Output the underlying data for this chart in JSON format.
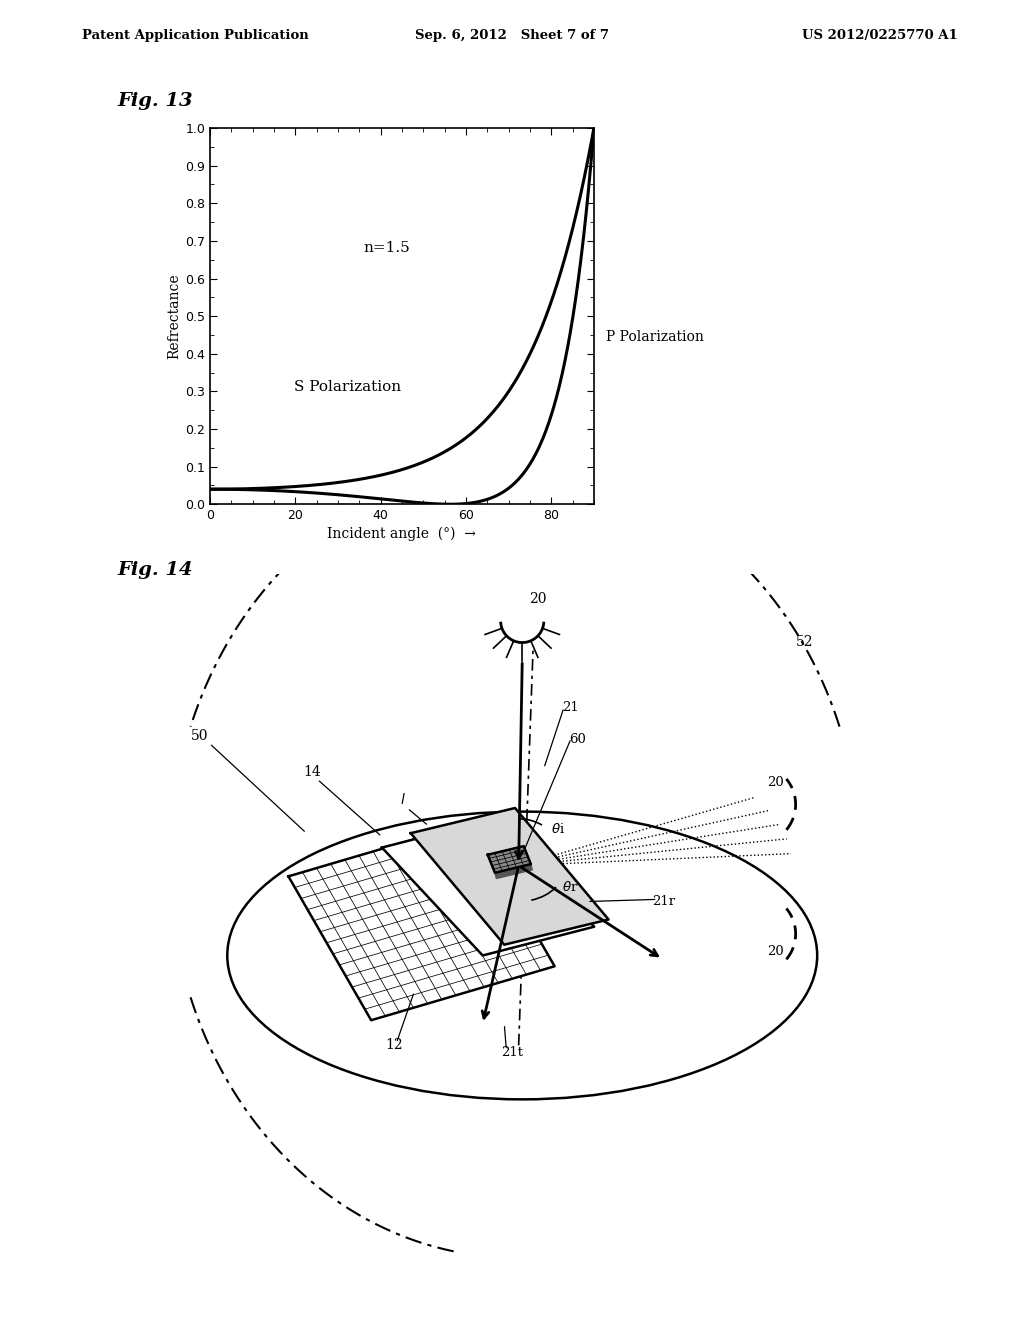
{
  "page_header_left": "Patent Application Publication",
  "page_header_center": "Sep. 6, 2012   Sheet 7 of 7",
  "page_header_right": "US 2012/0225770 A1",
  "fig13_title": "Fig. 13",
  "fig13_xlabel": "Incident angle  (°)  →",
  "fig13_ylabel": "Refrectance",
  "fig13_n_label": "n=1.5",
  "fig13_s_label": "S Polarization",
  "fig13_p_label": "P Polarization",
  "fig13_xlim": [
    0,
    90
  ],
  "fig13_ylim": [
    0,
    1.0
  ],
  "fig13_xticks": [
    0,
    20,
    40,
    60,
    80
  ],
  "fig13_yticks": [
    0,
    0.1,
    0.2,
    0.3,
    0.4,
    0.5,
    0.6,
    0.7,
    0.8,
    0.9,
    1.0
  ],
  "fig14_title": "Fig. 14",
  "background_color": "#ffffff",
  "line_color": "#000000"
}
